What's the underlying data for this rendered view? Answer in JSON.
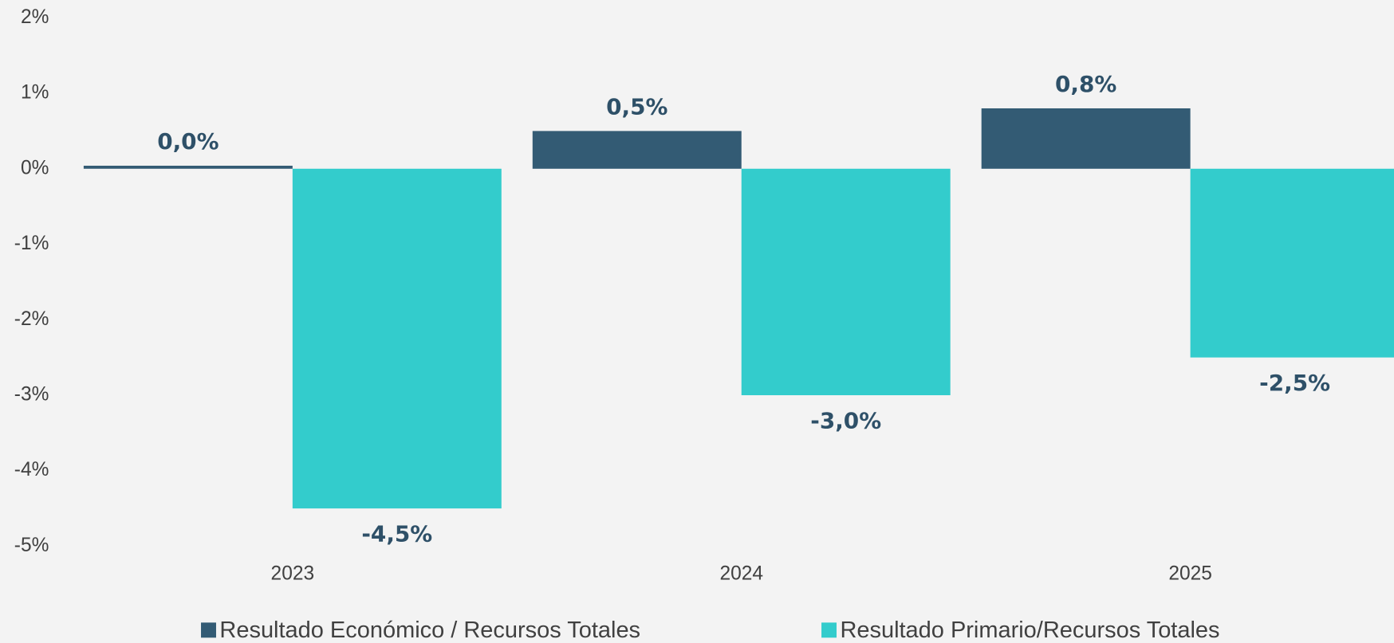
{
  "chart_data": {
    "type": "bar",
    "categories": [
      "2023",
      "2024",
      "2025"
    ],
    "series": [
      {
        "name": "Resultado Económico / Recursos Totales",
        "color": "#335b74",
        "values": [
          0.04,
          0.5,
          0.8
        ],
        "value_labels": [
          "0,0%",
          "0,5%",
          "0,8%"
        ]
      },
      {
        "name": "Resultado Primario/Recursos Totales",
        "color": "#33cccc",
        "values": [
          -4.5,
          -3.0,
          -2.5
        ],
        "value_labels": [
          "-4,5%",
          "-3,0%",
          "-2,5%"
        ]
      }
    ],
    "ylim": [
      -5,
      2
    ],
    "yticks": [
      {
        "value": -5,
        "label": "-5%"
      },
      {
        "value": -4,
        "label": "-4%"
      },
      {
        "value": -3,
        "label": "-3%"
      },
      {
        "value": -2,
        "label": "-2%"
      },
      {
        "value": -1,
        "label": "-1%"
      },
      {
        "value": 0,
        "label": "0%"
      },
      {
        "value": 1,
        "label": "1%"
      },
      {
        "value": 2,
        "label": "2%"
      }
    ],
    "grid": false,
    "legend": "bottom"
  }
}
